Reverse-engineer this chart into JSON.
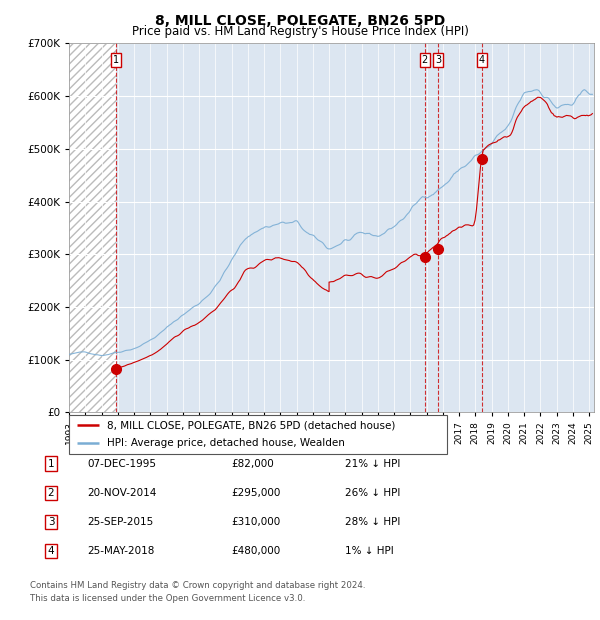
{
  "title": "8, MILL CLOSE, POLEGATE, BN26 5PD",
  "subtitle": "Price paid vs. HM Land Registry's House Price Index (HPI)",
  "sales": [
    {
      "label": "1",
      "date_num": 1995.92,
      "price": 82000
    },
    {
      "label": "2",
      "date_num": 2014.89,
      "price": 295000
    },
    {
      "label": "3",
      "date_num": 2015.73,
      "price": 310000
    },
    {
      "label": "4",
      "date_num": 2018.39,
      "price": 480000
    }
  ],
  "legend_line1": "8, MILL CLOSE, POLEGATE, BN26 5PD (detached house)",
  "legend_line2": "HPI: Average price, detached house, Wealden",
  "table": [
    {
      "num": "1",
      "date": "07-DEC-1995",
      "price": "£82,000",
      "hpi": "21% ↓ HPI"
    },
    {
      "num": "2",
      "date": "20-NOV-2014",
      "price": "£295,000",
      "hpi": "26% ↓ HPI"
    },
    {
      "num": "3",
      "date": "25-SEP-2015",
      "price": "£310,000",
      "hpi": "28% ↓ HPI"
    },
    {
      "num": "4",
      "date": "25-MAY-2018",
      "price": "£480,000",
      "hpi": "1% ↓ HPI"
    }
  ],
  "footnote1": "Contains HM Land Registry data © Crown copyright and database right 2024.",
  "footnote2": "This data is licensed under the Open Government Licence v3.0.",
  "ylim": [
    0,
    700000
  ],
  "xlim_start": 1993.0,
  "xlim_end": 2025.3,
  "hatch_end": 1995.92,
  "red_color": "#cc0000",
  "blue_color": "#7aadd4",
  "background_color": "#dce6f1"
}
